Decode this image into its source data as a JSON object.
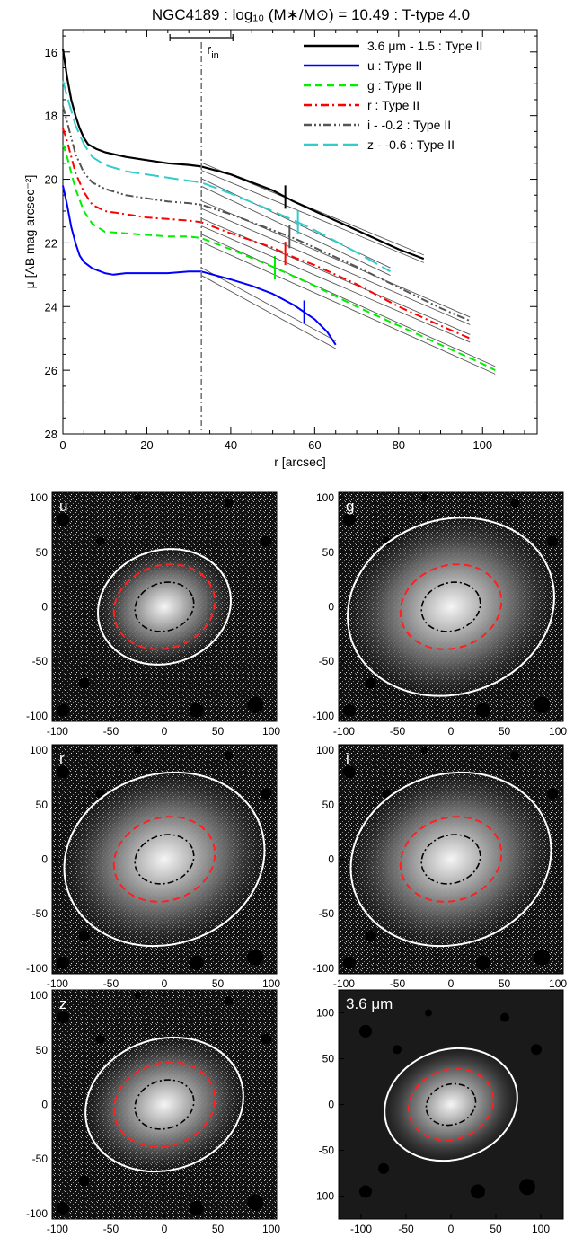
{
  "chart_data": [
    {
      "type": "line",
      "title": "NGC4189 : log₁₀ (M∗/M⊙) = 10.49 : T-type 4.0",
      "xlabel": "r [arcsec]",
      "ylabel": "μ [AB mag arcsec⁻²]",
      "xlim": [
        0,
        113
      ],
      "ylim": [
        28,
        15.3
      ],
      "x_ticks": [
        "0",
        "20",
        "40",
        "60",
        "80",
        "100"
      ],
      "y_ticks": [
        "16",
        "18",
        "20",
        "22",
        "24",
        "26",
        "28"
      ],
      "r_in": {
        "label": "r",
        "sub": "in",
        "value": 33,
        "range": [
          25.5,
          40.5
        ]
      },
      "legend_placement": "top-right",
      "series": [
        {
          "name": "3.6 μm - 1.5 : Type II",
          "color": "#000000",
          "dash": "solid",
          "width": 2.2,
          "x": [
            0,
            1,
            2,
            3,
            4,
            5,
            6,
            8,
            10,
            15,
            20,
            25,
            30,
            33,
            40,
            50,
            55,
            60,
            65,
            70,
            75,
            80,
            86
          ],
          "y": [
            15.9,
            16.8,
            17.5,
            18.0,
            18.4,
            18.7,
            18.9,
            19.05,
            19.15,
            19.3,
            19.4,
            19.5,
            19.55,
            19.6,
            19.85,
            20.35,
            20.7,
            21.0,
            21.3,
            21.6,
            21.9,
            22.2,
            22.5
          ],
          "break_x": 53
        },
        {
          "name": "u : Type II",
          "color": "#0000ff",
          "dash": "solid",
          "width": 2.0,
          "x": [
            0,
            1,
            2,
            3,
            4,
            5,
            7,
            10,
            12,
            15,
            20,
            25,
            30,
            33,
            40,
            45,
            50,
            55,
            60,
            63,
            65
          ],
          "y": [
            20.2,
            20.8,
            21.5,
            22.0,
            22.4,
            22.6,
            22.8,
            22.95,
            23.0,
            22.95,
            22.95,
            22.95,
            22.9,
            22.9,
            23.15,
            23.35,
            23.6,
            23.95,
            24.4,
            24.8,
            25.2
          ],
          "break_x": 57.5
        },
        {
          "name": "g : Type II",
          "color": "#00ee00",
          "dash": "dash",
          "width": 2.0,
          "x": [
            0,
            1,
            3,
            5,
            7,
            10,
            15,
            20,
            25,
            30,
            33,
            40,
            50,
            60,
            70,
            80,
            90,
            95,
            100,
            103
          ],
          "y": [
            18.9,
            19.3,
            20.3,
            21.0,
            21.4,
            21.65,
            21.7,
            21.75,
            21.8,
            21.8,
            21.85,
            22.2,
            22.75,
            23.35,
            24.0,
            24.6,
            25.2,
            25.5,
            25.8,
            26.0
          ],
          "break_x": 50.5
        },
        {
          "name": "r : Type II",
          "color": "#ff0000",
          "dash": "dashdot",
          "width": 2.0,
          "x": [
            0,
            1,
            3,
            5,
            7,
            10,
            15,
            20,
            25,
            30,
            33,
            40,
            50,
            55,
            60,
            70,
            80,
            90,
            97
          ],
          "y": [
            18.4,
            18.8,
            19.8,
            20.4,
            20.8,
            21.0,
            21.1,
            21.2,
            21.25,
            21.3,
            21.35,
            21.7,
            22.15,
            22.45,
            22.7,
            23.3,
            24.0,
            24.6,
            25.0
          ],
          "break_x": 53
        },
        {
          "name": "i - -0.2 : Type II",
          "color": "#555555",
          "dash": "dashdotdot",
          "width": 2.0,
          "x": [
            0,
            1,
            3,
            5,
            7,
            10,
            15,
            20,
            25,
            30,
            33,
            40,
            50,
            55,
            60,
            70,
            80,
            90,
            97
          ],
          "y": [
            17.7,
            18.2,
            19.2,
            19.8,
            20.1,
            20.3,
            20.5,
            20.6,
            20.7,
            20.75,
            20.8,
            21.1,
            21.6,
            21.85,
            22.15,
            22.75,
            23.4,
            24.05,
            24.45
          ],
          "break_x": 54
        },
        {
          "name": "z - -0.6 : Type II",
          "color": "#33cccc",
          "dash": "longdash",
          "width": 2.0,
          "x": [
            0,
            1,
            3,
            5,
            7,
            10,
            15,
            20,
            25,
            30,
            33,
            40,
            50,
            56,
            60,
            70,
            78
          ],
          "y": [
            16.9,
            17.4,
            18.3,
            18.9,
            19.3,
            19.55,
            19.75,
            19.85,
            19.95,
            20.05,
            20.1,
            20.45,
            21.0,
            21.35,
            21.6,
            22.3,
            22.9
          ],
          "break_x": 56
        }
      ]
    },
    {
      "type": "image-panels",
      "panels": [
        {
          "label": "u",
          "x_ticks": [
            "-100",
            "-50",
            "0",
            "50",
            "100"
          ],
          "y_ticks": [
            "100",
            "50",
            "0",
            "-50",
            "-100"
          ],
          "lim": 105,
          "ellipses": {
            "white": [
              63,
              52
            ],
            "red": [
              48,
              38
            ],
            "black": [
              28,
              22
            ]
          }
        },
        {
          "label": "g",
          "x_ticks": [
            "-100",
            "-50",
            "0",
            "50",
            "100"
          ],
          "y_ticks": [
            "100",
            "50",
            "0",
            "-50",
            "-100"
          ],
          "lim": 105,
          "ellipses": {
            "white": [
              98,
              80
            ],
            "red": [
              48,
              38
            ],
            "black": [
              28,
              22
            ]
          }
        },
        {
          "label": "r",
          "x_ticks": [
            "-100",
            "-50",
            "0",
            "50",
            "100"
          ],
          "y_ticks": [
            "100",
            "50",
            "0",
            "-50",
            "-100"
          ],
          "lim": 105,
          "ellipses": {
            "white": [
              95,
              78
            ],
            "red": [
              48,
              38
            ],
            "black": [
              28,
              22
            ]
          }
        },
        {
          "label": "i",
          "x_ticks": [
            "-100",
            "-50",
            "0",
            "50",
            "100"
          ],
          "y_ticks": [
            "100",
            "50",
            "0",
            "-50",
            "-100"
          ],
          "lim": 105,
          "ellipses": {
            "white": [
              95,
              78
            ],
            "red": [
              48,
              38
            ],
            "black": [
              28,
              22
            ]
          }
        },
        {
          "label": "z",
          "x_ticks": [
            "-100",
            "-50",
            "0",
            "50",
            "100"
          ],
          "y_ticks": [
            "100",
            "50",
            "0",
            "-50",
            "-100"
          ],
          "lim": 105,
          "ellipses": {
            "white": [
              75,
              60
            ],
            "red": [
              48,
              38
            ],
            "black": [
              28,
              22
            ]
          }
        },
        {
          "label": "3.6 μm",
          "x_ticks": [
            "-100",
            "-50",
            "0",
            "50",
            "100"
          ],
          "y_ticks": [
            "100",
            "50",
            "0",
            "-50",
            "-100"
          ],
          "lim": 125,
          "ellipses": {
            "white": [
              75,
              60
            ],
            "red": [
              48,
              38
            ],
            "black": [
              28,
              22
            ]
          }
        }
      ]
    }
  ]
}
